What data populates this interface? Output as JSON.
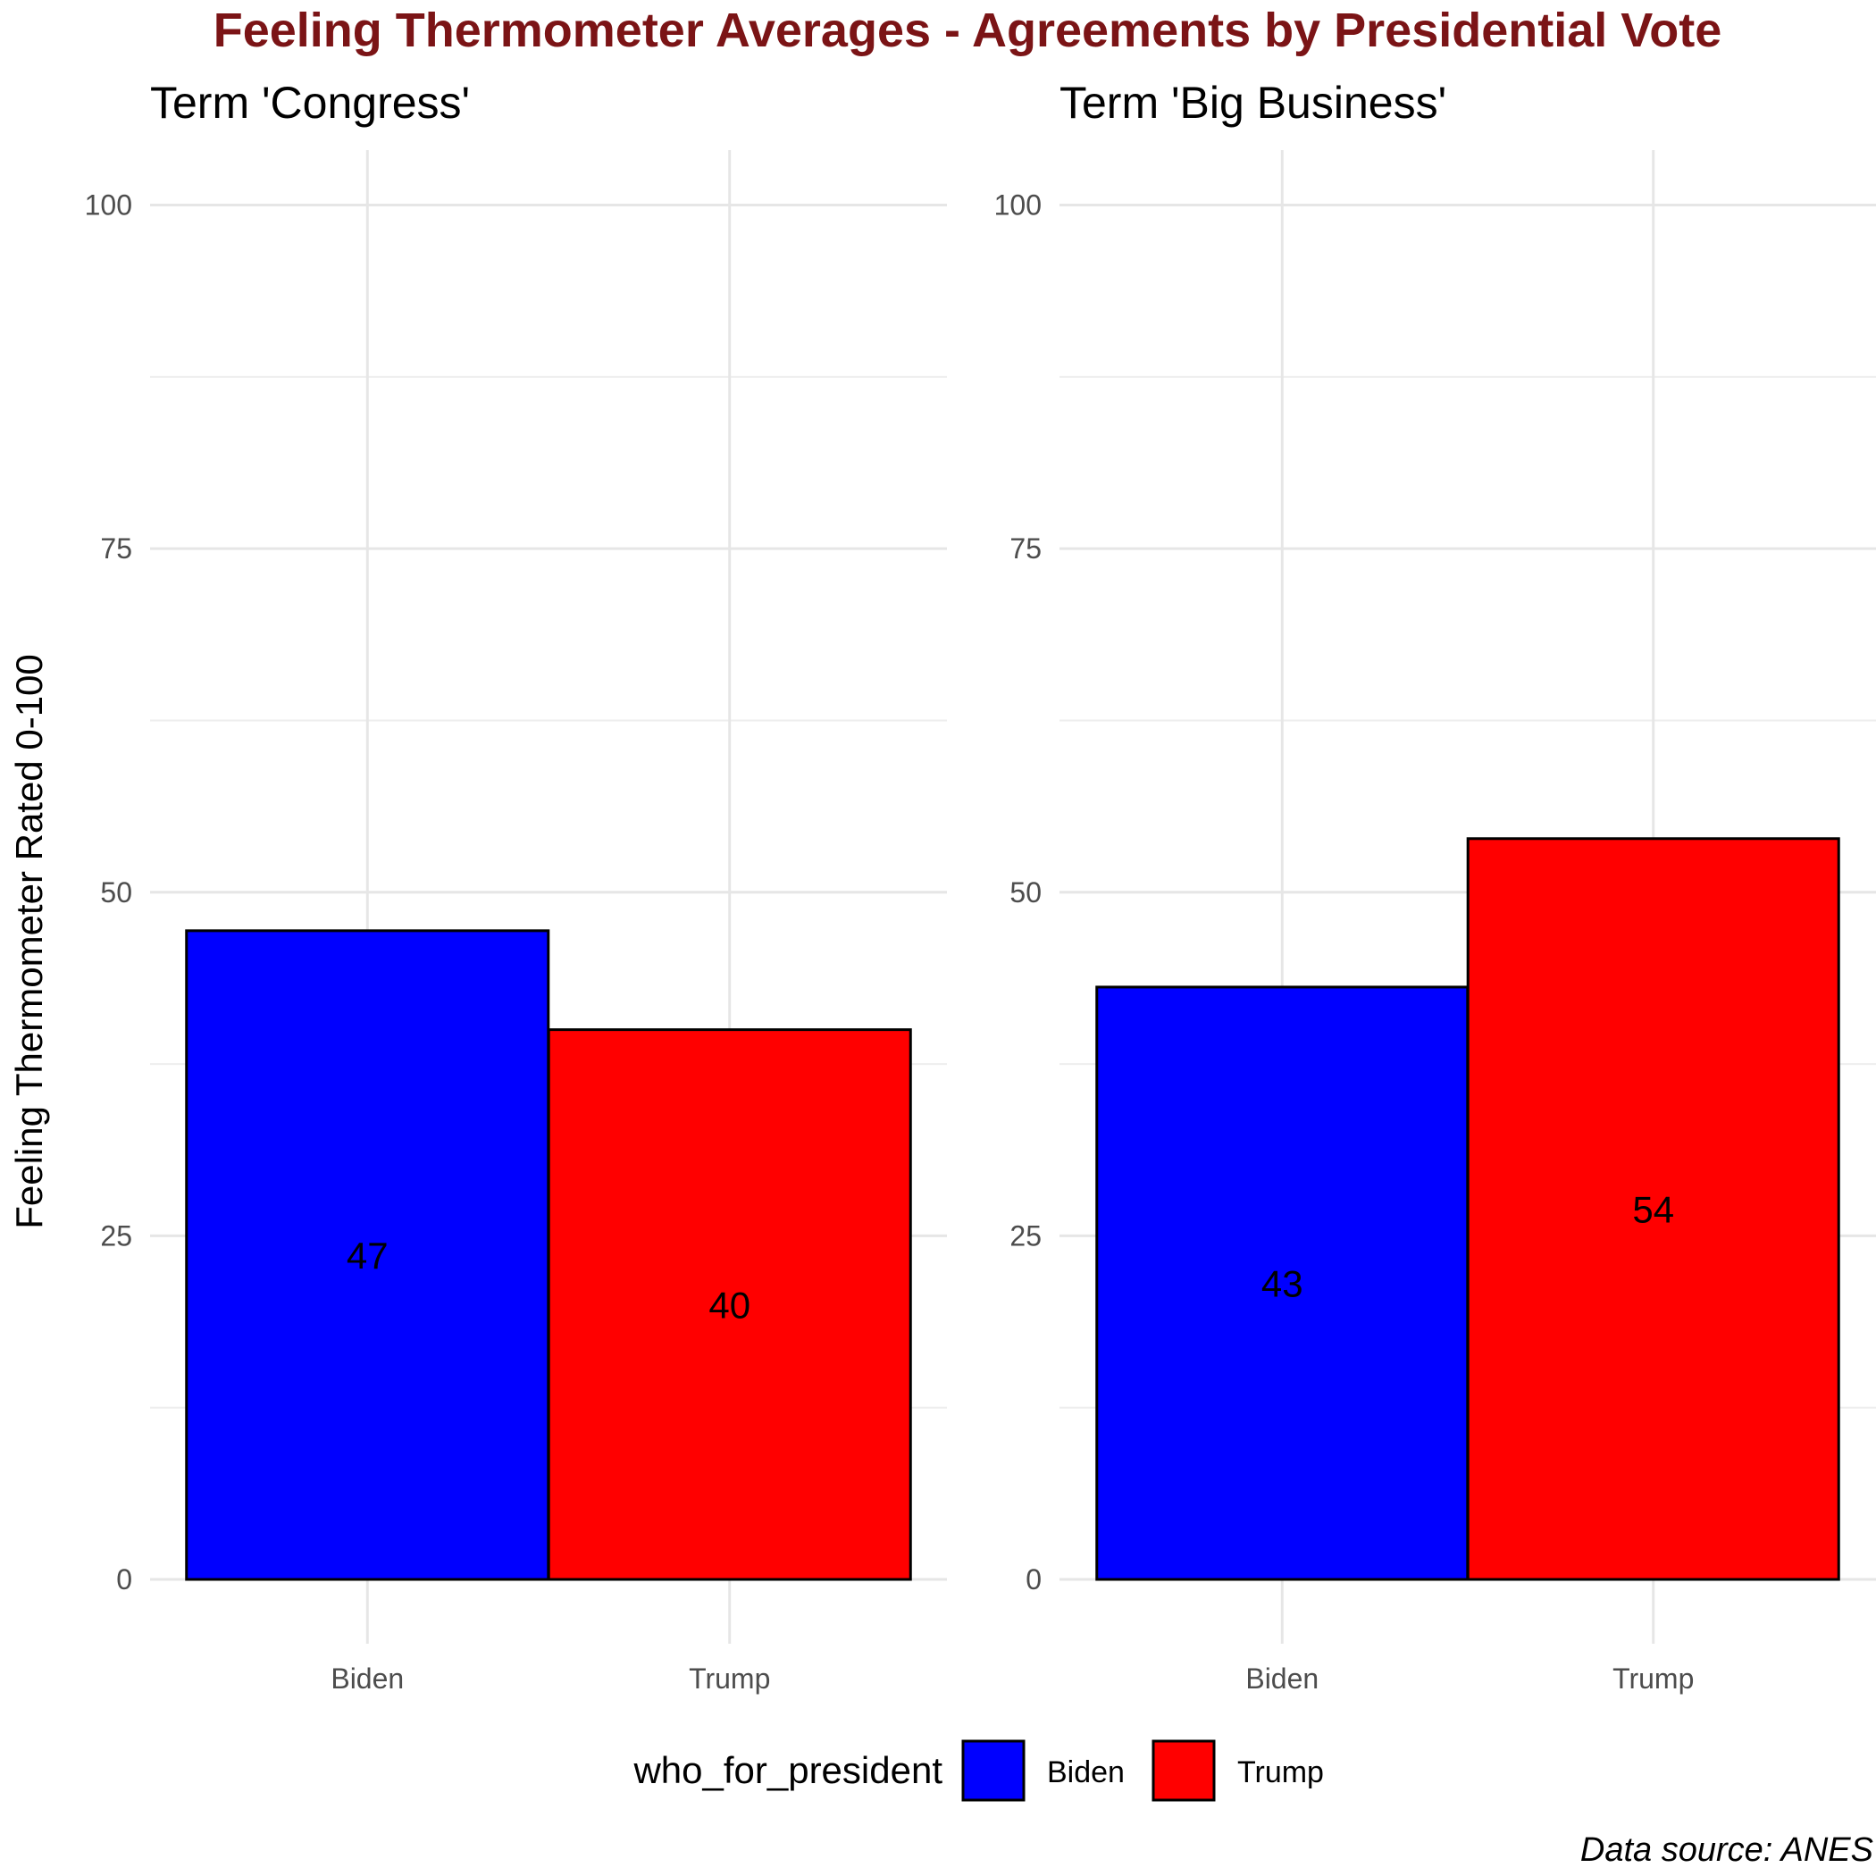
{
  "chart_data": {
    "type": "bar",
    "title": "Feeling Thermometer Averages - Agreements by Presidential Vote",
    "ylabel": "Feeling Thermometer Rated 0-100",
    "xlabel": "",
    "ylim": [
      0,
      104
    ],
    "yticks": [
      0,
      25,
      50,
      75,
      100
    ],
    "grid": true,
    "categories": [
      "Biden",
      "Trump"
    ],
    "panels": [
      {
        "title": "Term 'Congress'",
        "values": [
          47.2,
          40.0
        ],
        "labels": [
          "47",
          "40"
        ]
      },
      {
        "title": "Term 'Big Business'",
        "values": [
          43.1,
          53.9
        ],
        "labels": [
          "43",
          "54"
        ]
      }
    ],
    "legend": {
      "title": "who_for_president",
      "position": "bottom",
      "items": [
        {
          "label": "Biden",
          "color": "#0000ff"
        },
        {
          "label": "Trump",
          "color": "#ff0000"
        }
      ]
    },
    "caption": "Data source: ANES"
  },
  "colors": {
    "title": "#7b1416",
    "bar_outline": "#000000"
  }
}
